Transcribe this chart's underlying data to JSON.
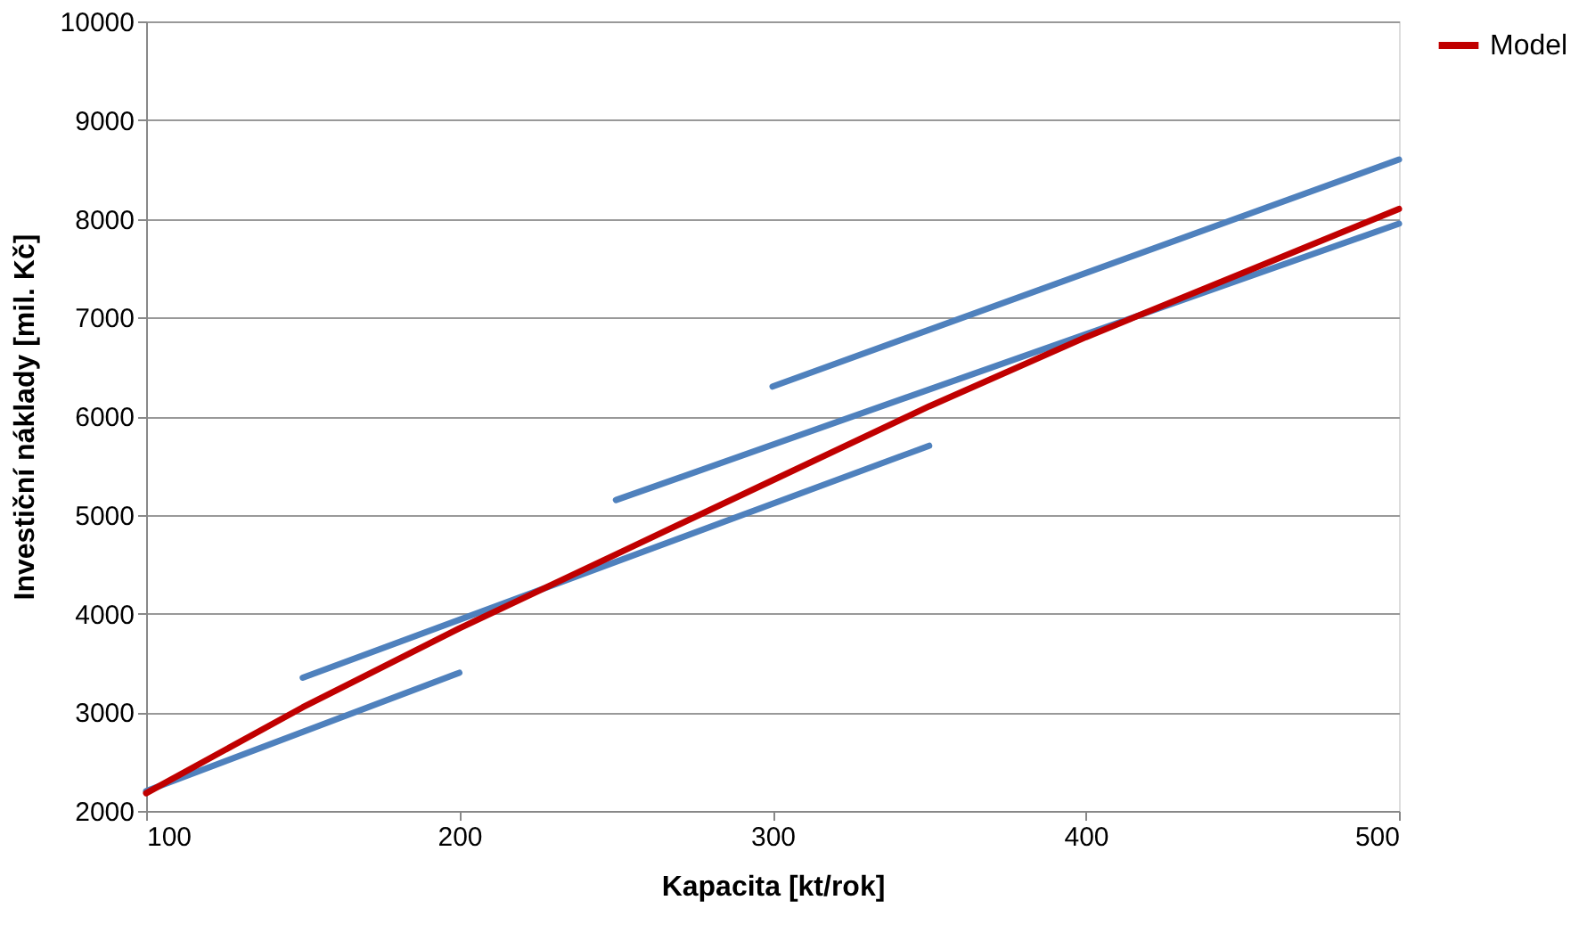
{
  "chart_data": {
    "type": "line",
    "xlabel": "Kapacita [kt/rok]",
    "ylabel": "Investiční náklady [mil. Kč]",
    "xlim": [
      100,
      500
    ],
    "xticks": [
      100,
      200,
      300,
      400,
      500
    ],
    "ylim": [
      2000,
      10000
    ],
    "yticks": [
      2000,
      3000,
      4000,
      5000,
      6000,
      7000,
      8000,
      9000,
      10000
    ],
    "grid": "y",
    "legend": "right",
    "marker": "none",
    "line_style": "solid",
    "series": [
      {
        "color": "#4f81bd",
        "x": [
          100,
          200
        ],
        "values": [
          2200,
          3400
        ]
      },
      {
        "color": "#4f81bd",
        "x": [
          150,
          350
        ],
        "values": [
          3350,
          5700
        ]
      },
      {
        "color": "#4f81bd",
        "x": [
          250,
          500
        ],
        "values": [
          5150,
          7950
        ]
      },
      {
        "color": "#4f81bd",
        "x": [
          300,
          500
        ],
        "values": [
          6300,
          8600
        ]
      },
      {
        "name": "Model",
        "color": "#c00000",
        "x": [
          100,
          150,
          200,
          250,
          300,
          350,
          400,
          450,
          500
        ],
        "values": [
          2180,
          3050,
          3850,
          4600,
          5350,
          6100,
          6800,
          7450,
          8100
        ]
      }
    ]
  }
}
